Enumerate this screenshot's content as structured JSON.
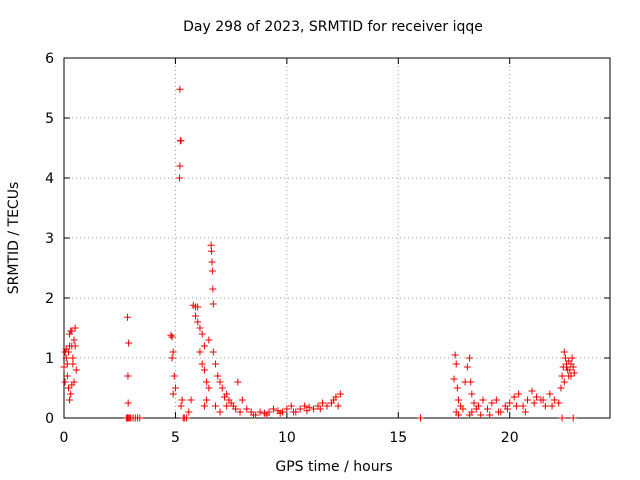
{
  "chart_data": {
    "type": "scatter",
    "title": "Day 298 of 2023, SRMTID for receiver iqqe",
    "xlabel": "GPS time / hours",
    "ylabel": "SRMTID / TECUs",
    "xlim": [
      0,
      24.5
    ],
    "ylim": [
      0,
      6
    ],
    "xticks": [
      0,
      5,
      10,
      15,
      20
    ],
    "yticks": [
      0,
      1,
      2,
      3,
      4,
      5,
      6
    ],
    "grid": true,
    "marker": "plus",
    "color": "#ee0000",
    "series": [
      {
        "name": "SRMTID",
        "x": [
          0.0,
          0.05,
          0.1,
          0.15,
          0.2,
          0.25,
          0.3,
          0.35,
          0.4,
          0.45,
          0.5,
          0.55,
          0.05,
          0.15,
          0.25,
          0.35,
          0.45,
          0.3,
          0.2,
          0.4,
          0.1,
          0.5,
          0.35,
          0.25,
          2.8,
          2.85,
          2.9,
          2.95,
          3.0,
          3.1,
          3.2,
          3.3,
          3.4,
          2.85,
          2.9,
          2.87,
          2.88,
          4.8,
          4.85,
          4.9,
          4.95,
          5.0,
          4.9,
          4.85,
          5.2,
          5.22,
          5.25,
          5.2,
          5.18,
          5.3,
          5.25,
          5.35,
          5.4,
          5.5,
          5.6,
          5.7,
          5.8,
          5.9,
          6.0,
          5.9,
          6.0,
          6.1,
          6.2,
          6.3,
          6.1,
          6.2,
          6.3,
          6.4,
          6.5,
          6.6,
          6.62,
          6.64,
          6.66,
          6.68,
          6.7,
          6.5,
          6.4,
          6.3,
          6.7,
          6.8,
          6.9,
          7.0,
          7.1,
          7.2,
          7.3,
          7.4,
          7.5,
          7.6,
          7.8,
          8.0,
          8.2,
          6.8,
          7.0,
          7.3,
          7.7,
          7.9,
          8.4,
          8.6,
          8.8,
          9.0,
          9.2,
          9.4,
          9.6,
          9.8,
          10.0,
          10.2,
          10.4,
          10.6,
          10.8,
          11.0,
          11.2,
          11.4,
          11.6,
          11.8,
          12.0,
          12.2,
          12.4,
          8.5,
          9.1,
          9.7,
          10.3,
          10.9,
          11.5,
          12.1,
          12.3,
          16.0,
          17.5,
          17.55,
          17.6,
          17.65,
          17.7,
          17.8,
          17.9,
          18.0,
          18.1,
          18.2,
          18.25,
          18.3,
          18.4,
          18.5,
          17.6,
          17.7,
          18.2,
          18.3,
          18.6,
          18.8,
          19.0,
          19.2,
          19.4,
          19.6,
          19.8,
          20.0,
          20.2,
          20.4,
          20.6,
          20.8,
          21.0,
          21.2,
          21.4,
          21.6,
          21.8,
          22.0,
          22.2,
          18.7,
          19.1,
          19.5,
          19.9,
          20.3,
          20.7,
          21.1,
          21.5,
          21.9,
          22.3,
          22.35,
          22.4,
          22.45,
          22.5,
          22.55,
          22.6,
          22.65,
          22.7,
          22.75,
          22.8,
          22.85,
          22.9,
          22.45,
          22.55,
          22.65,
          22.75,
          22.35,
          22.85
        ],
        "y": [
          0.85,
          1.1,
          1.0,
          0.7,
          0.5,
          1.4,
          1.45,
          1.2,
          1.0,
          0.6,
          1.5,
          0.8,
          0.6,
          0.9,
          1.2,
          1.45,
          1.3,
          0.4,
          1.1,
          0.9,
          1.15,
          1.2,
          0.55,
          0.3,
          0.0,
          0.0,
          0.0,
          0.0,
          0.0,
          0.0,
          0.0,
          0.0,
          0.0,
          1.68,
          1.25,
          0.7,
          0.25,
          1.38,
          1.35,
          1.1,
          0.7,
          0.5,
          0.4,
          1.0,
          5.48,
          4.62,
          4.62,
          4.2,
          4.0,
          0.3,
          0.2,
          0.0,
          0.0,
          0.0,
          0.1,
          0.3,
          1.88,
          1.85,
          1.85,
          1.7,
          1.6,
          1.5,
          1.4,
          1.2,
          1.1,
          0.9,
          0.8,
          0.6,
          1.3,
          2.88,
          2.78,
          2.6,
          2.45,
          2.15,
          1.9,
          0.5,
          0.3,
          0.2,
          1.1,
          0.9,
          0.7,
          0.6,
          0.5,
          0.35,
          0.4,
          0.3,
          0.25,
          0.2,
          0.6,
          0.3,
          0.15,
          0.2,
          0.1,
          0.2,
          0.15,
          0.1,
          0.1,
          0.05,
          0.1,
          0.08,
          0.1,
          0.15,
          0.12,
          0.1,
          0.15,
          0.2,
          0.1,
          0.15,
          0.2,
          0.18,
          0.15,
          0.2,
          0.25,
          0.2,
          0.25,
          0.35,
          0.4,
          0.05,
          0.05,
          0.08,
          0.1,
          0.12,
          0.15,
          0.3,
          0.2,
          0.0,
          0.65,
          1.05,
          0.9,
          0.5,
          0.3,
          0.2,
          0.15,
          0.6,
          0.85,
          1.0,
          0.6,
          0.4,
          0.25,
          0.15,
          0.1,
          0.05,
          0.05,
          0.1,
          0.2,
          0.3,
          0.15,
          0.25,
          0.3,
          0.1,
          0.2,
          0.25,
          0.35,
          0.4,
          0.2,
          0.3,
          0.45,
          0.35,
          0.3,
          0.2,
          0.4,
          0.3,
          0.25,
          0.05,
          0.05,
          0.1,
          0.15,
          0.2,
          0.1,
          0.25,
          0.3,
          0.2,
          0.5,
          0.7,
          0.85,
          1.1,
          1.0,
          0.9,
          0.8,
          0.7,
          0.8,
          0.9,
          1.0,
          0.85,
          0.75,
          0.6,
          0.85,
          0.95,
          0.7,
          0.0,
          0.0
        ]
      }
    ]
  }
}
